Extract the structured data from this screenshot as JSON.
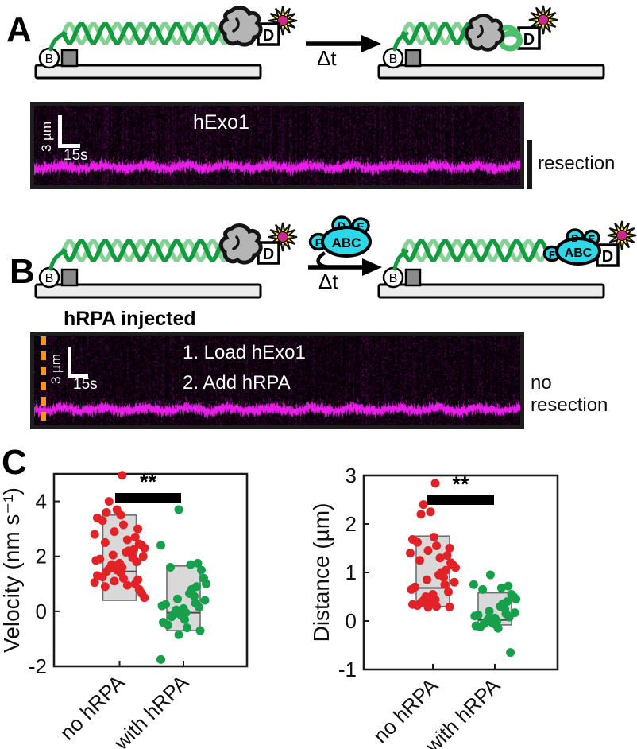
{
  "panel_a": {
    "label": "A",
    "schematic": {
      "biotin_label": "B",
      "dig_label": "D",
      "biotin_label_right": "B",
      "dig_label_right": "D",
      "arrow_label": "Δt"
    },
    "kymo": {
      "scale_v": "3 µm",
      "scale_h": "15s",
      "title": "hExo1"
    },
    "annotation": "resection"
  },
  "panel_b": {
    "label": "B",
    "schematic": {
      "biotin_label": "B",
      "dig_label": "D",
      "biotin_label_right": "B",
      "dig_label_right": "D",
      "arrow_label": "Δt",
      "rpa_free": {
        "f": "F",
        "abc": "ABC",
        "d": "D",
        "e": "E"
      },
      "rpa_bound": {
        "f": "F",
        "abc": "ABC",
        "d": "D",
        "e": "E"
      }
    },
    "kymo_title": "hRPA injected",
    "kymo": {
      "scale_v": "3 µm",
      "scale_h": "15s",
      "step1": "1. Load hExo1",
      "step2": "2. Add hRPA"
    },
    "annotation_line1": "no",
    "annotation_line2": "resection"
  },
  "panel_c": {
    "label": "C"
  },
  "colors": {
    "red": "#e32227",
    "green": "#17a04b",
    "cyan": "#2bd9e8",
    "helix_dark": "#149b40",
    "helix_light": "#84d095",
    "magenta": "#fc20fc",
    "orange": "#f8941e",
    "bar_gray": "#d6d6d6",
    "star_yellow": "#fde92b",
    "fluor_pink": "#c92a8c"
  },
  "chart_data": [
    {
      "type": "scatter",
      "title": "",
      "ylabel": "Velocity (nm s⁻¹)",
      "categories": [
        "no hRPA",
        "with hRPA"
      ],
      "ylim": [
        -2,
        5
      ],
      "yticks": [
        4,
        2,
        0,
        -2
      ],
      "grid": false,
      "significance": "**",
      "series": [
        {
          "name": "no hRPA",
          "color": "#e32227",
          "bar": {
            "low": 0.4,
            "median": 1.45,
            "high": 3.5
          },
          "values": [
            4.95,
            4.0,
            3.7,
            3.6,
            3.5,
            3.4,
            3.3,
            3.15,
            3.0,
            2.9,
            2.8,
            2.7,
            2.6,
            2.5,
            2.45,
            2.4,
            2.3,
            2.25,
            2.2,
            2.15,
            2.1,
            2.05,
            2.0,
            1.95,
            1.9,
            1.85,
            1.8,
            1.75,
            1.7,
            1.65,
            1.6,
            1.55,
            1.5,
            1.45,
            1.4,
            1.3,
            1.25,
            1.2,
            1.15,
            1.1,
            1.05,
            1.0,
            0.95,
            0.9,
            0.8,
            0.65,
            0.5
          ]
        },
        {
          "name": "with hRPA",
          "color": "#17a04b",
          "bar": {
            "low": -0.7,
            "median": -0.05,
            "high": 1.65
          },
          "values": [
            3.7,
            2.4,
            1.75,
            1.7,
            1.6,
            1.5,
            1.2,
            1.0,
            0.9,
            0.8,
            0.65,
            0.55,
            0.45,
            0.4,
            0.3,
            0.25,
            0.2,
            0.15,
            0.1,
            0.05,
            0.0,
            -0.05,
            -0.1,
            -0.15,
            -0.2,
            -0.3,
            -0.4,
            -0.5,
            -0.6,
            -0.7,
            -0.85,
            -1.75
          ]
        }
      ]
    },
    {
      "type": "scatter",
      "title": "",
      "ylabel": "Distance (µm)",
      "categories": [
        "no hRPA",
        "with hRPA"
      ],
      "ylim": [
        -1,
        3
      ],
      "yticks": [
        3,
        2,
        1,
        0,
        -1
      ],
      "grid": false,
      "significance": "**",
      "series": [
        {
          "name": "no hRPA",
          "color": "#e32227",
          "bar": {
            "low": 0.3,
            "median": 0.68,
            "high": 1.75
          },
          "values": [
            2.84,
            2.4,
            2.25,
            2.2,
            1.73,
            1.68,
            1.62,
            1.55,
            1.5,
            1.45,
            1.4,
            1.35,
            1.3,
            1.25,
            1.2,
            1.15,
            1.1,
            1.05,
            1.0,
            0.95,
            0.9,
            0.85,
            0.8,
            0.75,
            0.7,
            0.65,
            0.6,
            0.55,
            0.5,
            0.47,
            0.44,
            0.42,
            0.4,
            0.38,
            0.36,
            0.34,
            0.32,
            0.3,
            0.29,
            0.28
          ]
        },
        {
          "name": "with hRPA",
          "color": "#17a04b",
          "bar": {
            "low": -0.08,
            "median": 0.02,
            "high": 0.58
          },
          "values": [
            0.95,
            0.75,
            0.72,
            0.68,
            0.65,
            0.55,
            0.5,
            0.45,
            0.4,
            0.35,
            0.3,
            0.25,
            0.2,
            0.17,
            0.15,
            0.12,
            0.1,
            0.08,
            0.06,
            0.04,
            0.02,
            0.0,
            -0.02,
            -0.04,
            -0.06,
            -0.08,
            -0.1,
            -0.12,
            -0.15,
            -0.65
          ]
        }
      ]
    }
  ]
}
